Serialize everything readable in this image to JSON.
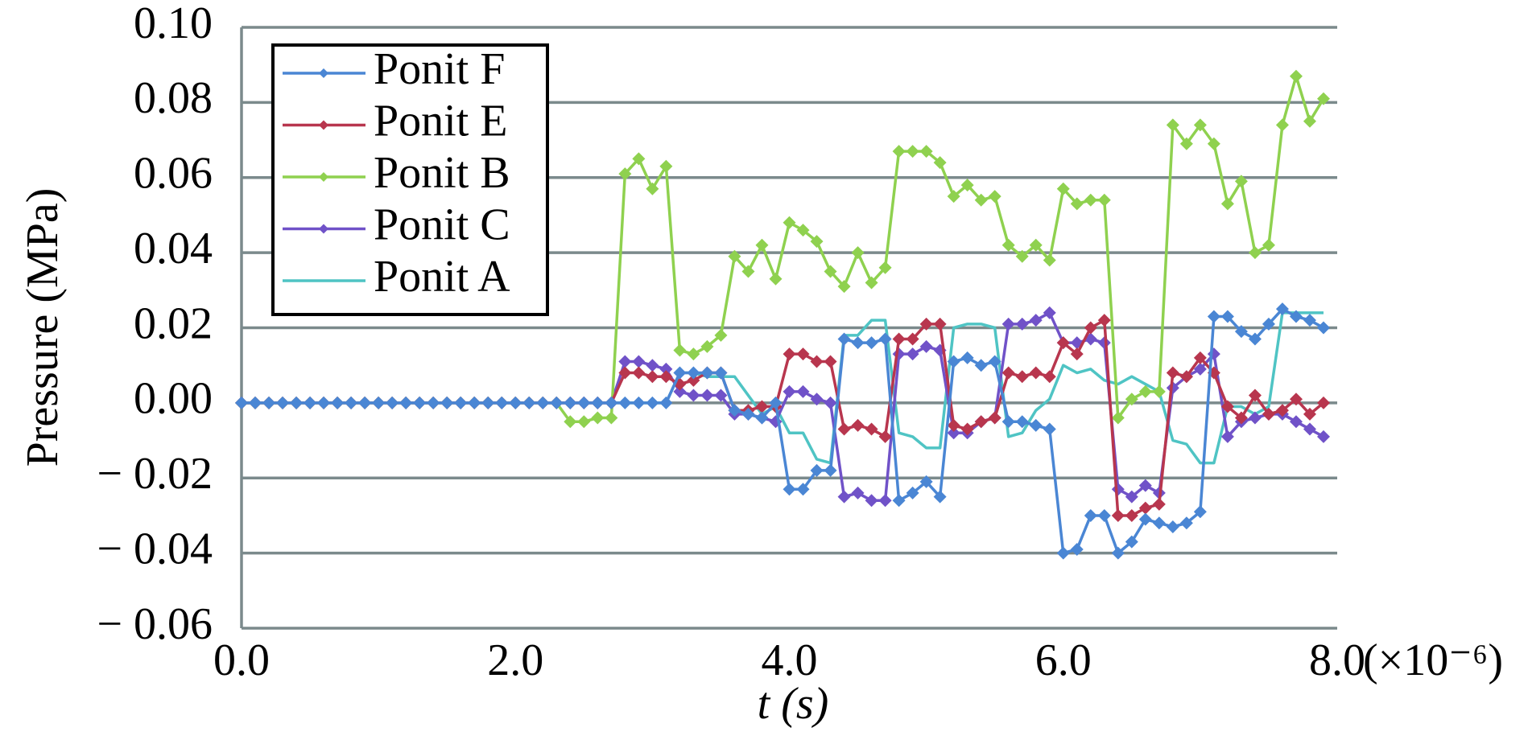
{
  "chart_data": {
    "type": "line",
    "xlabel": "t (s)",
    "ylabel": "Pressure (MPa)",
    "x_multiplier": "(×10⁻⁶)",
    "xlim": [
      0,
      8
    ],
    "ylim": [
      -0.06,
      0.1
    ],
    "xticks": [
      {
        "value": 0,
        "label": "0.0"
      },
      {
        "value": 2,
        "label": "2.0"
      },
      {
        "value": 4,
        "label": "4.0"
      },
      {
        "value": 6,
        "label": "6.0"
      },
      {
        "value": 8,
        "label": "8.0"
      }
    ],
    "yticks": [
      {
        "value": -0.06,
        "label": "− 0.06"
      },
      {
        "value": -0.04,
        "label": "− 0.04"
      },
      {
        "value": -0.02,
        "label": "− 0.02"
      },
      {
        "value": 0,
        "label": "0.00"
      },
      {
        "value": 0.02,
        "label": "0.02"
      },
      {
        "value": 0.04,
        "label": "0.04"
      },
      {
        "value": 0.06,
        "label": "0.06"
      },
      {
        "value": 0.08,
        "label": "0.08"
      },
      {
        "value": 0.1,
        "label": "0.10"
      }
    ],
    "grid": true,
    "legend": "upper left",
    "x": [
      0,
      0.1,
      0.2,
      0.3,
      0.4,
      0.5,
      0.6,
      0.7,
      0.8,
      0.9,
      1.0,
      1.1,
      1.2,
      1.3,
      1.4,
      1.5,
      1.6,
      1.7,
      1.8,
      1.9,
      2.0,
      2.1,
      2.2,
      2.3,
      2.4,
      2.5,
      2.6,
      2.7,
      2.8,
      2.9,
      3.0,
      3.1,
      3.2,
      3.3,
      3.4,
      3.5,
      3.6,
      3.7,
      3.8,
      3.9,
      4.0,
      4.1,
      4.2,
      4.3,
      4.4,
      4.5,
      4.6,
      4.7,
      4.8,
      4.9,
      5.0,
      5.1,
      5.2,
      5.3,
      5.4,
      5.5,
      5.6,
      5.7,
      5.8,
      5.9,
      6.0,
      6.1,
      6.2,
      6.3,
      6.4,
      6.5,
      6.6,
      6.7,
      6.8,
      6.9,
      7.0,
      7.1,
      7.2,
      7.3,
      7.4,
      7.5,
      7.6,
      7.7,
      7.8,
      7.9
    ],
    "series": [
      {
        "name": "Ponit F",
        "color": "#4a86d4",
        "markers": true,
        "values": [
          0,
          0,
          0,
          0,
          0,
          0,
          0,
          0,
          0,
          0,
          0,
          0,
          0,
          0,
          0,
          0,
          0,
          0,
          0,
          0,
          0,
          0,
          0,
          0,
          0,
          0,
          0,
          0,
          0,
          0,
          0,
          0,
          0.008,
          0.008,
          0.008,
          0.008,
          -0.002,
          -0.003,
          -0.004,
          0,
          -0.023,
          -0.023,
          -0.018,
          -0.018,
          0.017,
          0.016,
          0.016,
          0.017,
          -0.026,
          -0.024,
          -0.021,
          -0.025,
          0.011,
          0.012,
          0.01,
          0.011,
          -0.005,
          -0.005,
          -0.006,
          -0.007,
          -0.04,
          -0.039,
          -0.03,
          -0.03,
          -0.04,
          -0.037,
          -0.031,
          -0.032,
          -0.033,
          -0.032,
          -0.029,
          0.023,
          0.023,
          0.019,
          0.017,
          0.021,
          0.025,
          0.023,
          0.022,
          0.02
        ]
      },
      {
        "name": "Ponit E",
        "color": "#b8364e",
        "markers": true,
        "values": [
          0,
          0,
          0,
          0,
          0,
          0,
          0,
          0,
          0,
          0,
          0,
          0,
          0,
          0,
          0,
          0,
          0,
          0,
          0,
          0,
          0,
          0,
          0,
          0,
          0,
          0,
          0,
          0,
          0.008,
          0.008,
          0.007,
          0.007,
          0.005,
          0.006,
          0.008,
          0.008,
          -0.002,
          -0.002,
          -0.001,
          -0.001,
          0.013,
          0.013,
          0.011,
          0.011,
          -0.007,
          -0.006,
          -0.007,
          -0.009,
          0.017,
          0.017,
          0.021,
          0.021,
          -0.006,
          -0.007,
          -0.005,
          -0.004,
          0.008,
          0.007,
          0.008,
          0.007,
          0.016,
          0.013,
          0.02,
          0.022,
          -0.03,
          -0.03,
          -0.028,
          -0.027,
          0.008,
          0.007,
          0.012,
          0.008,
          -0.001,
          -0.004,
          0.002,
          -0.003,
          -0.002,
          0.001,
          -0.003,
          0
        ]
      },
      {
        "name": "Ponit B",
        "color": "#8fd14f",
        "markers": true,
        "values": [
          0,
          0,
          0,
          0,
          0,
          0,
          0,
          0,
          0,
          0,
          0,
          0,
          0,
          0,
          0,
          0,
          0,
          0,
          0,
          0,
          0,
          0,
          0,
          0,
          -0.005,
          -0.005,
          -0.004,
          -0.004,
          0.061,
          0.065,
          0.057,
          0.063,
          0.014,
          0.013,
          0.015,
          0.018,
          0.039,
          0.035,
          0.042,
          0.033,
          0.048,
          0.046,
          0.043,
          0.035,
          0.031,
          0.04,
          0.032,
          0.036,
          0.067,
          0.067,
          0.067,
          0.064,
          0.055,
          0.058,
          0.054,
          0.055,
          0.042,
          0.039,
          0.042,
          0.038,
          0.057,
          0.053,
          0.054,
          0.054,
          -0.004,
          0.001,
          0.003,
          0.003,
          0.074,
          0.069,
          0.074,
          0.069,
          0.053,
          0.059,
          0.04,
          0.042,
          0.074,
          0.087,
          0.075,
          0.081
        ]
      },
      {
        "name": "Ponit C",
        "color": "#7052c8",
        "markers": true,
        "values": [
          0,
          0,
          0,
          0,
          0,
          0,
          0,
          0,
          0,
          0,
          0,
          0,
          0,
          0,
          0,
          0,
          0,
          0,
          0,
          0,
          0,
          0,
          0,
          0,
          0,
          0,
          0,
          0,
          0.011,
          0.011,
          0.01,
          0.009,
          0.003,
          0.002,
          0.002,
          0.002,
          -0.003,
          -0.003,
          -0.004,
          -0.005,
          0.003,
          0.003,
          0.001,
          0,
          -0.025,
          -0.024,
          -0.026,
          -0.026,
          0.013,
          0.013,
          0.015,
          0.014,
          -0.008,
          -0.008,
          -0.005,
          -0.004,
          0.021,
          0.021,
          0.022,
          0.024,
          0.016,
          0.016,
          0.017,
          0.016,
          -0.023,
          -0.025,
          -0.022,
          -0.024,
          0.004,
          0.007,
          0.009,
          0.013,
          -0.009,
          -0.005,
          -0.004,
          -0.003,
          -0.003,
          -0.005,
          -0.007,
          -0.009
        ]
      },
      {
        "name": "Ponit A",
        "color": "#4fc4c4",
        "markers": false,
        "values": [
          0,
          0,
          0,
          0,
          0,
          0,
          0,
          0,
          0,
          0,
          0,
          0,
          0,
          0,
          0,
          0,
          0,
          0,
          0,
          0,
          0,
          0,
          0,
          0,
          0,
          0,
          0,
          0,
          0,
          0,
          0,
          0,
          0.008,
          0.008,
          0.007,
          0.007,
          0.007,
          0.002,
          -0.003,
          -0.001,
          -0.008,
          -0.008,
          -0.015,
          -0.016,
          0.018,
          0.018,
          0.022,
          0.022,
          -0.008,
          -0.009,
          -0.012,
          -0.012,
          0.02,
          0.021,
          0.021,
          0.02,
          -0.009,
          -0.008,
          -0.002,
          0.001,
          0.01,
          0.008,
          0.009,
          0.006,
          0.005,
          0.007,
          0.005,
          0.003,
          -0.01,
          -0.011,
          -0.016,
          -0.016,
          -0.001,
          -0.001,
          -0.003,
          -0.001,
          0.024,
          0.024,
          0.024,
          0.024
        ]
      }
    ]
  }
}
